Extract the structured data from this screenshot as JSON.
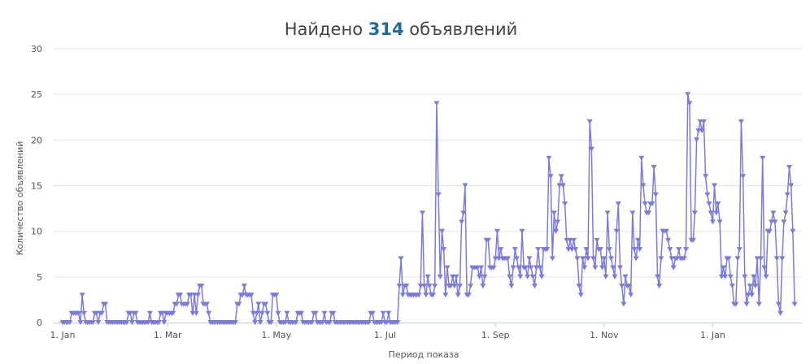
{
  "header": {
    "title_prefix": "Найдено",
    "count": "314",
    "title_suffix": "объявлений"
  },
  "chart_data": {
    "type": "line",
    "xlabel": "Период показа",
    "ylabel": "Количество объявлений",
    "ylim": [
      0,
      30
    ],
    "yticks": [
      0,
      5,
      10,
      15,
      20,
      25,
      30
    ],
    "x_start": "1. Jan",
    "x_end": "mid Feb (following year)",
    "xticks": [
      {
        "label": "1. Jan",
        "day": 0
      },
      {
        "label": "1. Mar",
        "day": 59
      },
      {
        "label": "1. May",
        "day": 120
      },
      {
        "label": "1. Jul",
        "day": 181
      },
      {
        "label": "1. Sep",
        "day": 243
      },
      {
        "label": "1. Nov",
        "day": 304
      },
      {
        "label": "1. Jan",
        "day": 365
      }
    ],
    "grid": true,
    "legend": "none",
    "series": [
      {
        "color": "#7b7bdf",
        "marker": "triangle-down",
        "values": [
          0,
          0,
          0,
          0,
          0,
          1,
          1,
          1,
          1,
          1,
          0,
          3,
          1,
          0,
          0,
          0,
          0,
          0,
          1,
          1,
          0,
          1,
          1,
          2,
          2,
          0,
          0,
          0,
          0,
          0,
          0,
          0,
          0,
          0,
          0,
          0,
          0,
          1,
          1,
          0,
          1,
          1,
          0,
          0,
          0,
          0,
          0,
          0,
          0,
          1,
          0,
          0,
          0,
          0,
          0,
          1,
          1,
          0,
          1,
          1,
          1,
          1,
          1,
          2,
          2,
          3,
          3,
          2,
          2,
          2,
          2,
          3,
          3,
          1,
          3,
          1,
          3,
          4,
          4,
          2,
          2,
          2,
          1,
          0,
          0,
          0,
          0,
          0,
          0,
          0,
          0,
          0,
          0,
          0,
          0,
          0,
          0,
          0,
          2,
          2,
          3,
          3,
          4,
          3,
          3,
          3,
          3,
          1,
          0,
          1,
          2,
          0,
          1,
          2,
          2,
          1,
          0,
          0,
          3,
          3,
          3,
          1,
          0,
          0,
          0,
          0,
          1,
          0,
          0,
          0,
          0,
          0,
          1,
          1,
          1,
          0,
          0,
          0,
          0,
          0,
          0,
          1,
          1,
          0,
          0,
          0,
          0,
          1,
          0,
          0,
          0,
          1,
          1,
          0,
          0,
          0,
          0,
          0,
          0,
          0,
          0,
          0,
          0,
          0,
          0,
          0,
          0,
          0,
          0,
          0,
          0,
          0,
          0,
          1,
          1,
          0,
          0,
          0,
          0,
          0,
          1,
          0,
          0,
          1,
          0,
          0,
          0,
          0,
          0,
          4,
          7,
          3,
          4,
          4,
          3,
          3,
          3,
          3,
          3,
          3,
          3,
          4,
          12,
          4,
          3,
          5,
          4,
          3,
          3,
          4,
          24,
          14,
          5,
          10,
          8,
          3,
          6,
          4,
          4,
          5,
          4,
          5,
          3,
          4,
          11,
          12,
          15,
          3,
          3,
          4,
          6,
          6,
          6,
          6,
          5,
          6,
          4,
          5,
          9,
          9,
          6,
          6,
          6,
          7,
          10,
          7,
          8,
          7,
          7,
          7,
          7,
          5,
          4,
          6,
          8,
          7,
          6,
          5,
          10,
          6,
          6,
          5,
          7,
          6,
          5,
          4,
          6,
          8,
          6,
          5,
          8,
          8,
          8,
          18,
          16,
          7,
          12,
          10,
          11,
          15,
          16,
          15,
          13,
          9,
          8,
          9,
          8,
          9,
          8,
          7,
          4,
          3,
          7,
          6,
          8,
          7,
          22,
          19,
          7,
          6,
          9,
          8,
          8,
          6,
          7,
          5,
          12,
          8,
          7,
          6,
          5,
          10,
          13,
          6,
          4,
          2,
          5,
          4,
          4,
          3,
          12,
          8,
          7,
          9,
          8,
          18,
          15,
          13,
          12,
          12,
          13,
          13,
          17,
          14,
          5,
          4,
          7,
          10,
          10,
          10,
          9,
          8,
          7,
          6,
          7,
          7,
          8,
          7,
          7,
          7,
          8,
          25,
          24,
          9,
          9,
          12,
          20,
          21,
          22,
          21,
          22,
          16,
          14,
          13,
          12,
          11,
          15,
          12,
          13,
          11,
          5,
          6,
          5,
          7,
          7,
          5,
          4,
          2,
          2,
          7,
          8,
          22,
          16,
          5,
          2,
          3,
          4,
          3,
          5,
          4,
          7,
          2,
          7,
          18,
          6,
          5,
          10,
          10,
          11,
          12,
          11,
          7,
          2,
          1,
          7,
          11,
          12,
          14,
          17,
          15,
          10,
          2
        ]
      }
    ]
  }
}
